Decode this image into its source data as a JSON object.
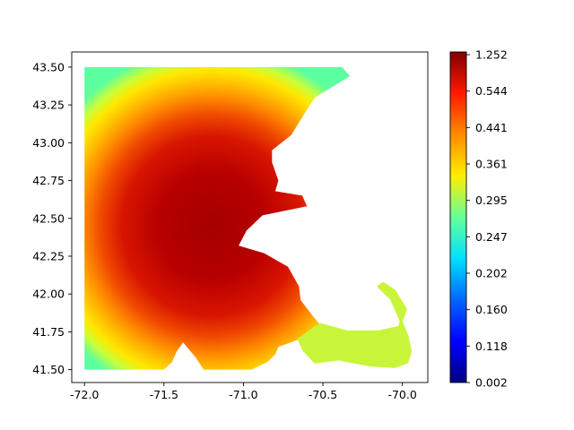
{
  "chart_data": {
    "type": "scatter",
    "subtype": "spatial-scatter-map-with-colorbar",
    "title": "",
    "xlabel": "",
    "ylabel": "",
    "xlim": [
      -72.08,
      -69.84
    ],
    "ylim": [
      41.415,
      43.6
    ],
    "x_ticks": [
      -72.0,
      -71.5,
      -71.0,
      -70.5,
      -70.0
    ],
    "x_tick_labels": [
      "-72.0",
      "-71.5",
      "-71.0",
      "-70.5",
      "-70.0"
    ],
    "y_ticks": [
      41.5,
      41.75,
      42.0,
      42.25,
      42.5,
      42.75,
      43.0,
      43.25,
      43.5
    ],
    "y_tick_labels": [
      "41.50",
      "41.75",
      "42.00",
      "42.25",
      "42.50",
      "42.75",
      "43.00",
      "43.25",
      "43.50"
    ],
    "grid": false,
    "colormap": "jet",
    "colorbar": {
      "tick_labels": [
        "0.002",
        "0.118",
        "0.160",
        "0.202",
        "0.247",
        "0.295",
        "0.361",
        "0.441",
        "0.544",
        "1.252"
      ],
      "min": 0.002,
      "max": 1.252
    },
    "field": {
      "center_lon": -71.2,
      "center_lat": 42.45,
      "peak_value": 1.0,
      "description_values": "values are highest (dark red, ~1.0) near lon -71.2, lat 42.45 and fall to ~0.24 at the western edge"
    },
    "regions": [
      {
        "name": "mainland",
        "points": [
          [
            -72.0,
            43.5
          ],
          [
            -70.38,
            43.5
          ],
          [
            -70.33,
            43.44
          ],
          [
            -70.55,
            43.3
          ],
          [
            -70.6,
            43.22
          ],
          [
            -70.7,
            43.05
          ],
          [
            -70.82,
            42.95
          ],
          [
            -70.82,
            42.87
          ],
          [
            -70.78,
            42.75
          ],
          [
            -70.8,
            42.68
          ],
          [
            -70.63,
            42.65
          ],
          [
            -70.6,
            42.58
          ],
          [
            -70.88,
            42.52
          ],
          [
            -70.98,
            42.42
          ],
          [
            -71.03,
            42.32
          ],
          [
            -70.87,
            42.27
          ],
          [
            -70.72,
            42.18
          ],
          [
            -70.65,
            42.05
          ],
          [
            -70.64,
            41.96
          ],
          [
            -70.56,
            41.85
          ],
          [
            -70.52,
            41.8
          ],
          [
            -70.65,
            41.7
          ],
          [
            -70.78,
            41.65
          ],
          [
            -70.8,
            41.6
          ],
          [
            -70.85,
            41.55
          ],
          [
            -70.95,
            41.5
          ],
          [
            -71.25,
            41.5
          ],
          [
            -71.3,
            41.58
          ],
          [
            -71.38,
            41.68
          ],
          [
            -71.42,
            41.62
          ],
          [
            -71.45,
            41.55
          ],
          [
            -71.5,
            41.5
          ],
          [
            -72.0,
            41.5
          ]
        ]
      },
      {
        "name": "cape-cod",
        "points": [
          [
            -70.52,
            41.8
          ],
          [
            -70.35,
            41.75
          ],
          [
            -70.15,
            41.75
          ],
          [
            -70.02,
            41.78
          ],
          [
            -69.98,
            41.9
          ],
          [
            -70.05,
            42.02
          ],
          [
            -70.12,
            42.07
          ],
          [
            -70.15,
            42.05
          ],
          [
            -70.07,
            41.97
          ],
          [
            -70.02,
            41.85
          ],
          [
            -69.97,
            41.72
          ],
          [
            -69.95,
            41.62
          ],
          [
            -69.97,
            41.55
          ],
          [
            -70.05,
            41.52
          ],
          [
            -70.2,
            41.53
          ],
          [
            -70.4,
            41.57
          ],
          [
            -70.55,
            41.55
          ],
          [
            -70.62,
            41.63
          ],
          [
            -70.65,
            41.7
          ]
        ]
      }
    ]
  }
}
